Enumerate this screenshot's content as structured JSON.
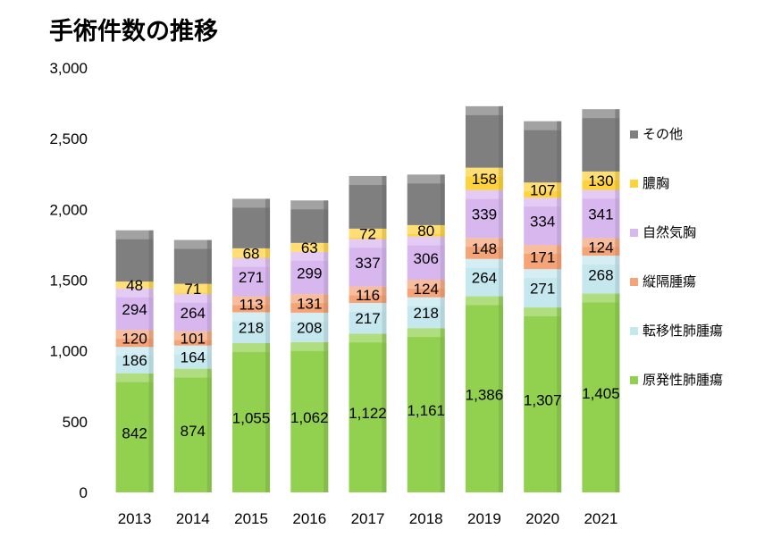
{
  "chart_data": {
    "type": "bar",
    "stacked": true,
    "title": "手術件数の推移",
    "xlabel": "",
    "ylabel": "",
    "ylim": [
      0,
      3000
    ],
    "yticks": [
      "0",
      "500",
      "1,000",
      "1,500",
      "2,000",
      "2,500",
      "3,000"
    ],
    "ytick_values": [
      0,
      500,
      1000,
      1500,
      2000,
      2500,
      3000
    ],
    "grid": false,
    "legend": "right",
    "categories": [
      "2013",
      "2014",
      "2015",
      "2016",
      "2017",
      "2018",
      "2019",
      "2020",
      "2021"
    ],
    "series": [
      {
        "name": "原発性肺腫瘍",
        "color": "#92d050",
        "values": [
          842,
          874,
          1055,
          1062,
          1122,
          1161,
          1386,
          1307,
          1405
        ],
        "labels": [
          "842",
          "874",
          "1,055",
          "1,062",
          "1,122",
          "1,161",
          "1,386",
          "1,307",
          "1,405"
        ]
      },
      {
        "name": "転移性肺腫瘍",
        "color": "#c5e8ef",
        "values": [
          186,
          164,
          218,
          208,
          217,
          218,
          264,
          271,
          268
        ],
        "labels": [
          "186",
          "164",
          "218",
          "208",
          "217",
          "218",
          "264",
          "271",
          "268"
        ]
      },
      {
        "name": "縦隔腫瘍",
        "color": "#f4a477",
        "values": [
          120,
          101,
          113,
          131,
          116,
          124,
          148,
          171,
          124
        ],
        "labels": [
          "120",
          "101",
          "113",
          "131",
          "116",
          "124",
          "148",
          "171",
          "124"
        ]
      },
      {
        "name": "自然気胸",
        "color": "#d8b7ef",
        "values": [
          294,
          264,
          271,
          299,
          337,
          306,
          339,
          334,
          341
        ],
        "labels": [
          "294",
          "264",
          "271",
          "299",
          "337",
          "306",
          "339",
          "334",
          "341"
        ]
      },
      {
        "name": "膿胸",
        "color": "#ffd33d",
        "values": [
          48,
          71,
          68,
          63,
          72,
          80,
          158,
          107,
          130
        ],
        "labels": [
          "48",
          "71",
          "68",
          "63",
          "72",
          "80",
          "158",
          "107",
          "130"
        ]
      },
      {
        "name": "その他",
        "color": "#7f7f7f",
        "values": [
          362,
          310,
          350,
          300,
          372,
          357,
          434,
          433,
          440
        ],
        "labels": [
          "",
          "",
          "",
          "",
          "",
          "",
          "",
          "",
          ""
        ]
      }
    ]
  }
}
